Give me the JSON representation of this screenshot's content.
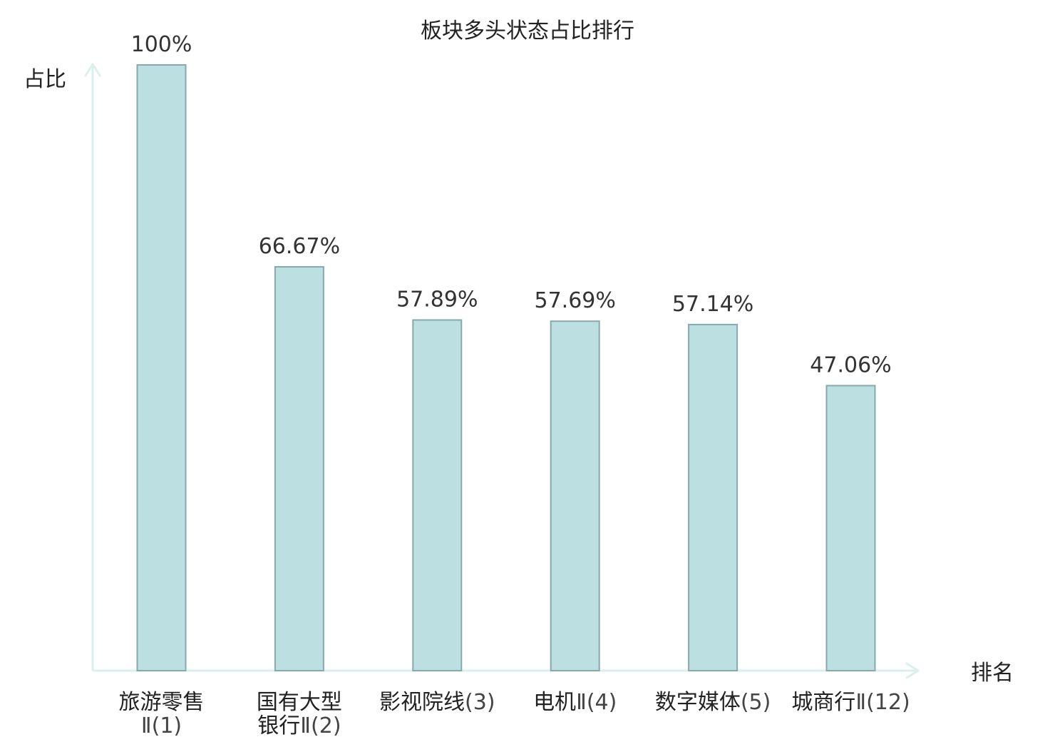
{
  "chart_data": {
    "type": "bar",
    "title": "板块多头状态占比排行",
    "ylabel": "占比",
    "xlabel": "排名",
    "ylim": [
      0,
      100
    ],
    "grid": false,
    "categories": [
      {
        "lines": [
          {
            "name": "旅游零售",
            "rank": ""
          },
          {
            "name": "",
            "rank": "Ⅱ(1)"
          }
        ],
        "highlight": false
      },
      {
        "lines": [
          {
            "name": "国有大型",
            "rank": ""
          },
          {
            "name": "银行",
            "rank": "Ⅱ(2)"
          }
        ],
        "highlight": false
      },
      {
        "lines": [
          {
            "name": "影视院线",
            "rank": "(3)"
          }
        ],
        "highlight": false
      },
      {
        "lines": [
          {
            "name": "电机",
            "rank": "Ⅱ(4)"
          }
        ],
        "highlight": false
      },
      {
        "lines": [
          {
            "name": "数字媒体",
            "rank": "(5)"
          }
        ],
        "highlight": false
      },
      {
        "lines": [
          {
            "name": "城商行",
            "rank": "Ⅱ(12)"
          }
        ],
        "highlight": true
      }
    ],
    "values": [
      100,
      66.67,
      57.89,
      57.69,
      57.14,
      47.06
    ],
    "value_labels": [
      "100%",
      "66.67%",
      "57.89%",
      "57.69%",
      "57.14%",
      "47.06%"
    ],
    "colors": {
      "bar_fill": "#bce0e2",
      "bar_stroke": "#88a9ac",
      "axis": "#d9f0ec",
      "highlight": "#e02020"
    }
  }
}
